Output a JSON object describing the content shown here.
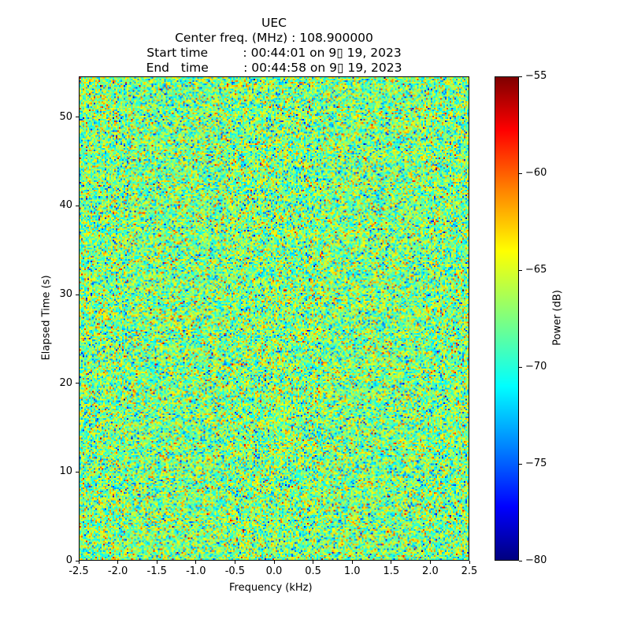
{
  "chart_data": {
    "type": "heatmap",
    "title_lines": [
      "UEC",
      "Center freq. (MHz) : 108.900000",
      "Start time         : 00:44:01 on 9▯ 19, 2023",
      "End   time         : 00:44:58 on 9▯ 19, 2023"
    ],
    "xlabel": "Frequency (kHz)",
    "ylabel": "Elapsed Time (s)",
    "xlim": [
      -2.5,
      2.5
    ],
    "ylim": [
      0,
      54.6
    ],
    "xticks": [
      "-2.5",
      "-2.0",
      "-1.5",
      "-1.0",
      "-0.5",
      "0.0",
      "0.5",
      "1.0",
      "1.5",
      "2.0",
      "2.5"
    ],
    "xtick_values": [
      -2.5,
      -2.0,
      -1.5,
      -1.0,
      -0.5,
      0.0,
      0.5,
      1.0,
      1.5,
      2.0,
      2.5
    ],
    "yticks": [
      "0",
      "10",
      "20",
      "30",
      "40",
      "50"
    ],
    "ytick_values": [
      0,
      10,
      20,
      30,
      40,
      50
    ],
    "colorbar": {
      "label": "Power (dB)",
      "colormap": "jet",
      "range": [
        -80,
        -55
      ],
      "ticks": [
        "−80",
        "−75",
        "−70",
        "−65",
        "−60",
        "−55"
      ],
      "tick_values": [
        -80,
        -75,
        -70,
        -65,
        -60,
        -55
      ]
    },
    "data_description_values": {
      "mean_db": -67.5,
      "std_db": 3.2
    }
  }
}
